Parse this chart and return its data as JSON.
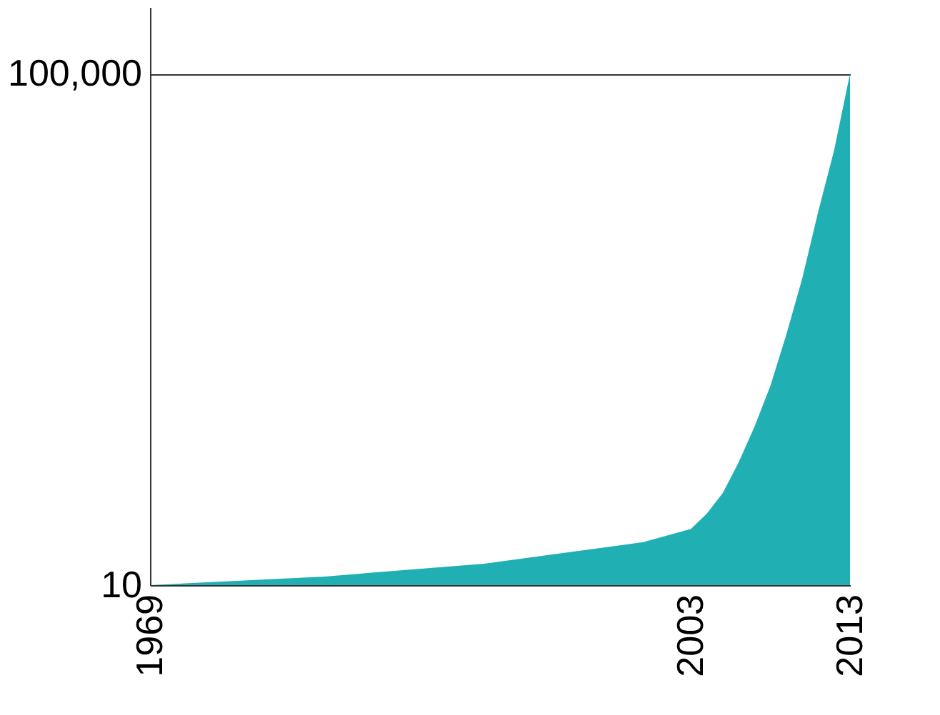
{
  "chart_data": {
    "type": "area",
    "color": "#20b0b4",
    "x": [
      1969,
      1980,
      1990,
      2000,
      2003,
      2004,
      2005,
      2006,
      2007,
      2008,
      2009,
      2010,
      2011,
      2012,
      2013
    ],
    "values": [
      10,
      1700,
      4200,
      8400,
      11000,
      14000,
      18000,
      24000,
      31000,
      39000,
      49000,
      60000,
      73000,
      85000,
      100000
    ],
    "xlim": [
      1969,
      2013
    ],
    "xticks": [
      1969,
      2003,
      2013
    ],
    "ylim": [
      10,
      113000
    ],
    "yticks": [
      10,
      {
        "value": 100000,
        "label": "100,000"
      }
    ],
    "grid": "y"
  }
}
